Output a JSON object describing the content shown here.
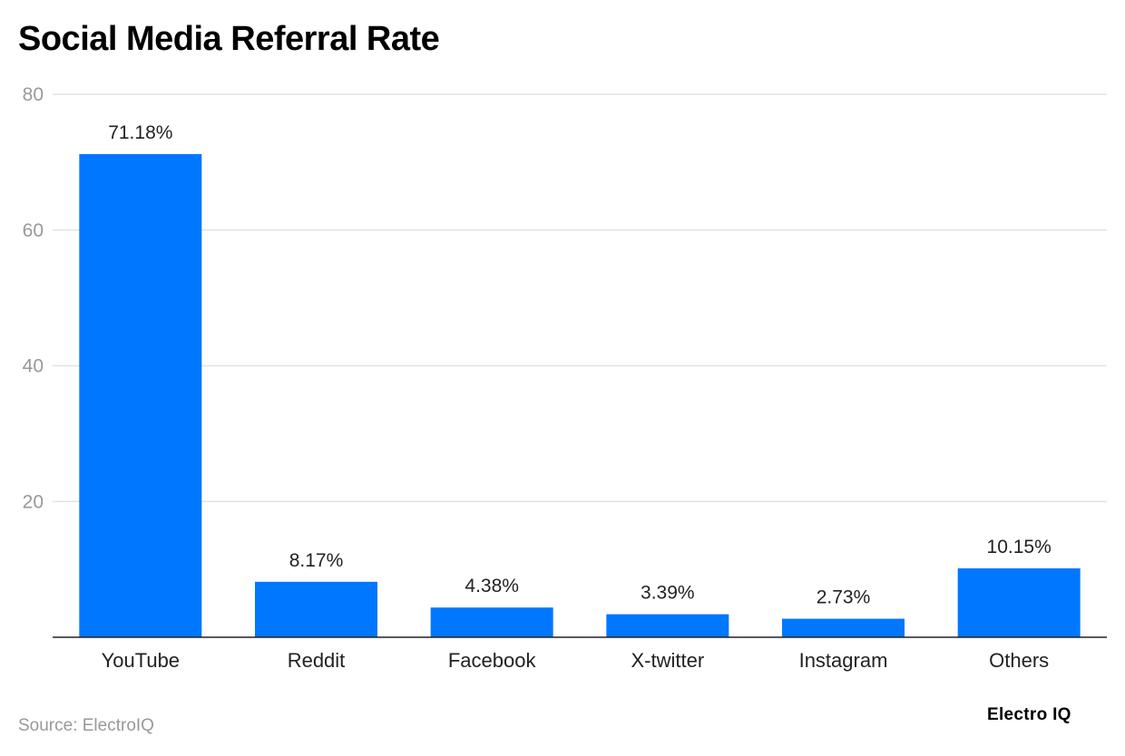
{
  "chart_data": {
    "type": "bar",
    "title": "Social Media Referral Rate",
    "categories": [
      "YouTube",
      "Reddit",
      "Facebook",
      "X-twitter",
      "Instagram",
      "Others"
    ],
    "values": [
      71.18,
      8.17,
      4.38,
      3.39,
      2.73,
      10.15
    ],
    "data_labels": [
      "71.18%",
      "8.17%",
      "4.38%",
      "3.39%",
      "2.73%",
      "10.15%"
    ],
    "xlabel": "",
    "ylabel": "",
    "ylim": [
      0,
      80
    ],
    "yticks": [
      20,
      40,
      60,
      80
    ],
    "grid": true,
    "bar_color": "#0077ff"
  },
  "source": "Source: ElectroIQ",
  "logo": "Electro IQ"
}
